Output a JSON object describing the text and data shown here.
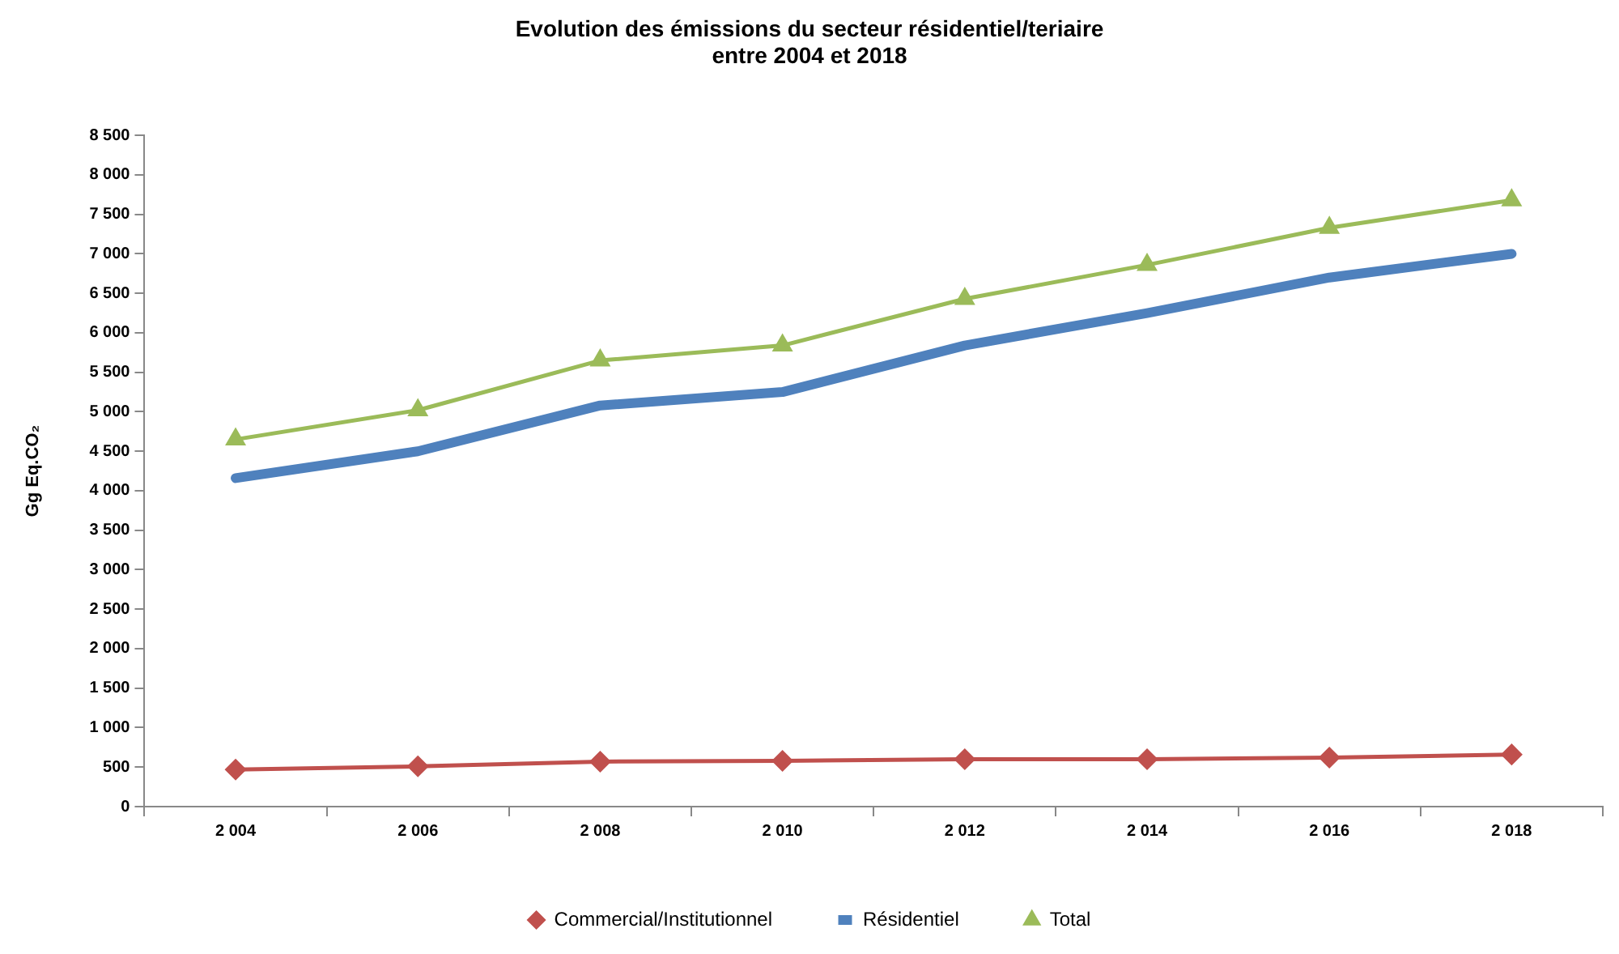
{
  "chart_data": {
    "type": "line",
    "title": "Evolution des émissions du secteur résidentiel/teriaire\nentre 2004 et 2018",
    "ylabel": "Gg Eq.CO₂",
    "categories": [
      "2 004",
      "2 006",
      "2 008",
      "2 010",
      "2 012",
      "2 014",
      "2 016",
      "2 018"
    ],
    "series": [
      {
        "name": "Commercial/Institutionnel",
        "color": "#c0504d",
        "marker": "diamond",
        "values": [
          470,
          510,
          570,
          580,
          600,
          600,
          620,
          660
        ]
      },
      {
        "name": "Résidentiel",
        "color": "#4f81bd",
        "marker": "none",
        "values": [
          4160,
          4500,
          5080,
          5250,
          5840,
          6250,
          6700,
          7000
        ]
      },
      {
        "name": "Total",
        "color": "#9bbb59",
        "marker": "triangle",
        "values": [
          4650,
          5020,
          5650,
          5840,
          6430,
          6860,
          7330,
          7680
        ]
      }
    ],
    "ylim": [
      0,
      8500
    ],
    "yticks": [
      {
        "value": 0,
        "label": "0"
      },
      {
        "value": 500,
        "label": "500"
      },
      {
        "value": 1000,
        "label": "1 000"
      },
      {
        "value": 1500,
        "label": "1 500"
      },
      {
        "value": 2000,
        "label": "2 000"
      },
      {
        "value": 2500,
        "label": "2 500"
      },
      {
        "value": 3000,
        "label": "3 000"
      },
      {
        "value": 3500,
        "label": "3 500"
      },
      {
        "value": 4000,
        "label": "4 000"
      },
      {
        "value": 4500,
        "label": "4 500"
      },
      {
        "value": 5000,
        "label": "5 000"
      },
      {
        "value": 5500,
        "label": "5 500"
      },
      {
        "value": 6000,
        "label": "6 000"
      },
      {
        "value": 6500,
        "label": "6 500"
      },
      {
        "value": 7000,
        "label": "7 000"
      },
      {
        "value": 7500,
        "label": "7 500"
      },
      {
        "value": 8000,
        "label": "8 000"
      },
      {
        "value": 8500,
        "label": "8 500"
      }
    ],
    "grid": false,
    "legend": "bottom"
  }
}
